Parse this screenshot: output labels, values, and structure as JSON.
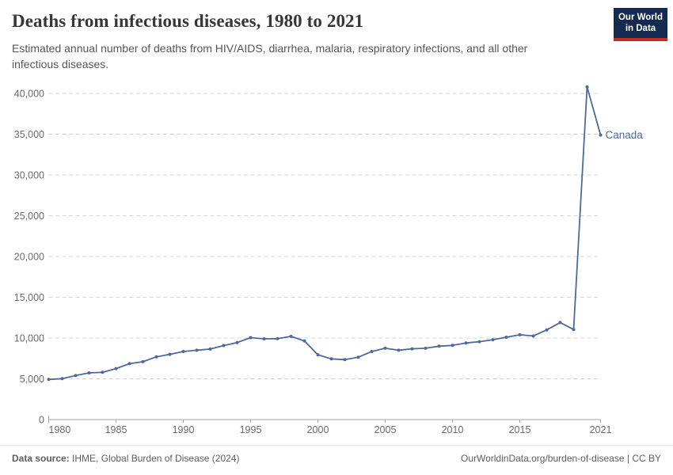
{
  "header": {
    "title": "Deaths from infectious diseases, 1980 to 2021",
    "subtitle": "Estimated annual number of deaths from HIV/AIDS, diarrhea, malaria, respiratory infections, and all other infectious diseases.",
    "logo": {
      "line1": "Our World",
      "line2": "in Data",
      "bg_color": "#142a4e",
      "bar_color": "#c52d20"
    }
  },
  "chart_data": {
    "type": "line",
    "title": "Deaths from infectious diseases, 1980 to 2021",
    "xlabel": "",
    "ylabel": "",
    "xlim": [
      1980,
      2021
    ],
    "ylim": [
      0,
      40000
    ],
    "grid": "horizontal-dashed",
    "legend_position": "end-of-line-label",
    "x": [
      1980,
      1981,
      1982,
      1983,
      1984,
      1985,
      1986,
      1987,
      1988,
      1989,
      1990,
      1991,
      1992,
      1993,
      1994,
      1995,
      1996,
      1997,
      1998,
      1999,
      2000,
      2001,
      2002,
      2003,
      2004,
      2005,
      2006,
      2007,
      2008,
      2009,
      2010,
      2011,
      2012,
      2013,
      2014,
      2015,
      2016,
      2017,
      2018,
      2019,
      2020,
      2021
    ],
    "series": [
      {
        "name": "Canada",
        "color": "#4C6A9C",
        "values": [
          4920,
          5020,
          5400,
          5730,
          5800,
          6250,
          6850,
          7100,
          7700,
          8000,
          8350,
          8500,
          8650,
          9080,
          9450,
          10050,
          9900,
          9920,
          10200,
          9650,
          7950,
          7450,
          7350,
          7650,
          8350,
          8750,
          8500,
          8680,
          8750,
          9000,
          9100,
          9400,
          9550,
          9800,
          10100,
          10400,
          10250,
          11000,
          11900,
          11050,
          40800,
          34900
        ]
      }
    ],
    "x_ticks": [
      1980,
      1985,
      1990,
      1995,
      2000,
      2005,
      2010,
      2015,
      2021
    ],
    "y_ticks": [
      0,
      5000,
      10000,
      15000,
      20000,
      25000,
      30000,
      35000,
      40000
    ],
    "y_tick_labels": [
      "0",
      "5,000",
      "10,000",
      "15,000",
      "20,000",
      "25,000",
      "30,000",
      "35,000",
      "40,000"
    ]
  },
  "footer": {
    "source_label": "Data source:",
    "source_value": " IHME, Global Burden of Disease (2024)",
    "credit": "OurWorldinData.org/burden-of-disease | CC BY"
  },
  "colors": {
    "line": "#4C6A9C",
    "title_text": "#373737",
    "subtitle_text": "#565656",
    "axis_text": "#6b6b6b",
    "gridline": "#d4d4d4",
    "axis_line": "#a3a3a3",
    "logo_bg": "#142a4e",
    "logo_bar": "#c52d20"
  }
}
